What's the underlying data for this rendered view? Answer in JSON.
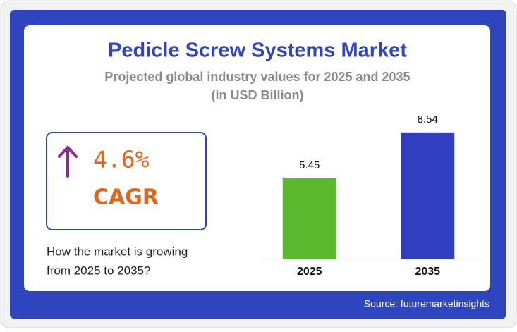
{
  "chart_data": {
    "type": "bar",
    "title": "Pedicle Screw Systems Market",
    "subtitle": "Projected global industry values for 2025 and 2035",
    "unit_note": "(in USD Billion)",
    "cagr": "4.6%",
    "cagr_label": "CAGR",
    "question": [
      "How the market is growing",
      "from 2025 to 2035?"
    ],
    "source": "Source: futuremarketinsights",
    "categories": [
      "2025",
      "2035"
    ],
    "values": [
      5.45,
      8.54
    ],
    "colors": [
      "#5cb82e",
      "#2f3fbf"
    ],
    "ylim": [
      0,
      10
    ]
  }
}
